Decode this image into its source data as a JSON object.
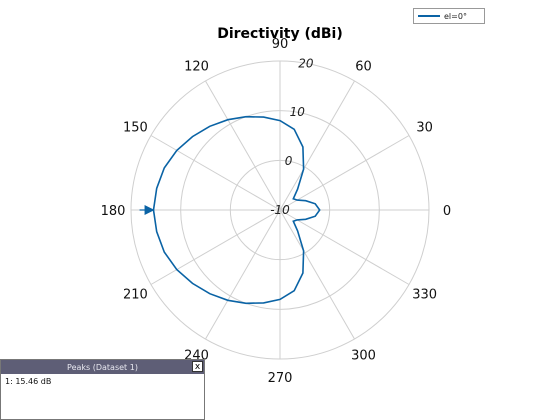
{
  "chart_data": {
    "type": "polar-line",
    "title": "Directivity (dBi)",
    "angle_ticks": [
      "0",
      "30",
      "60",
      "90",
      "120",
      "150",
      "180",
      "210",
      "240",
      "270",
      "300",
      "330"
    ],
    "radial_ticks": [
      "-10",
      "0",
      "10",
      "20"
    ],
    "radial_range": [
      -10,
      20
    ],
    "grid": true,
    "legend_position": "top-right",
    "series": [
      {
        "name": "el=0°",
        "color": "#0a63a5",
        "angles_deg": [
          0,
          10,
          20,
          30,
          40,
          50,
          60,
          70,
          80,
          90,
          100,
          110,
          120,
          130,
          140,
          150,
          160,
          170,
          180,
          190,
          200,
          210,
          220,
          230,
          240,
          250,
          260,
          270,
          280,
          290,
          300,
          310,
          320,
          330,
          340,
          350
        ],
        "values_db": [
          -2.0,
          -2.8,
          -4.5,
          -6.0,
          -6.5,
          -4.5,
          -0.5,
          3.5,
          6.5,
          8.0,
          9.0,
          10.0,
          11.0,
          12.0,
          13.0,
          14.0,
          14.8,
          15.2,
          15.46,
          15.2,
          14.8,
          14.0,
          13.0,
          12.0,
          11.0,
          10.0,
          9.0,
          8.0,
          6.5,
          3.5,
          -0.5,
          -4.5,
          -6.5,
          -6.0,
          -4.5,
          -2.8
        ]
      }
    ],
    "marker": {
      "angle_deg": 180,
      "value_db": 15.46
    }
  },
  "peaks_panel": {
    "title": "Peaks (Dataset 1)",
    "close_label": "x",
    "entries": [
      "1: 15.46 dB"
    ]
  }
}
